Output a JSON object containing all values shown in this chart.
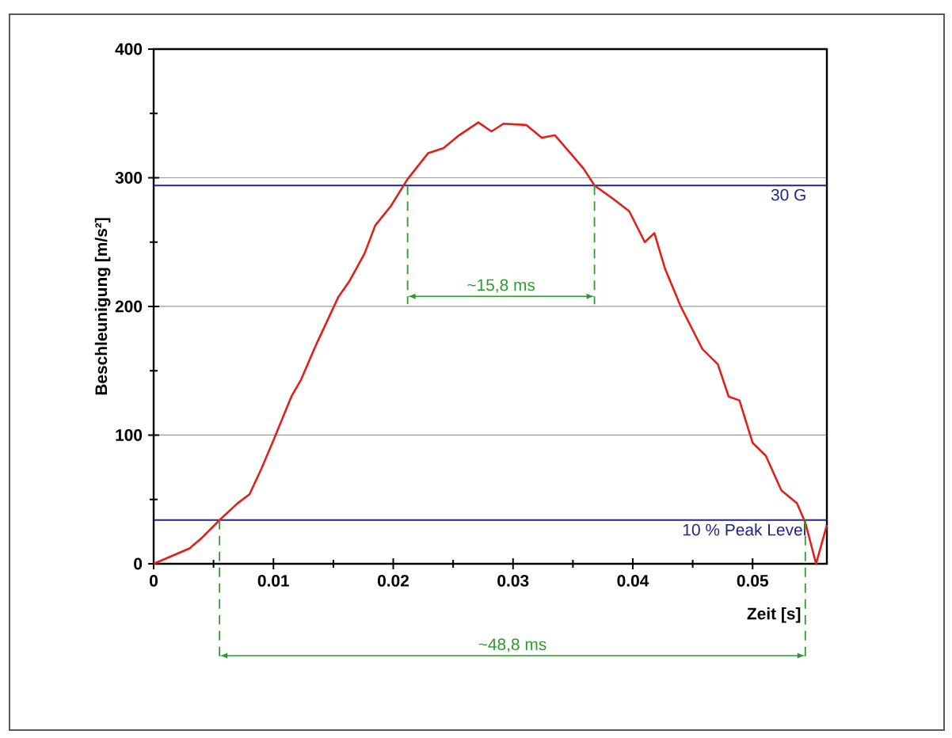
{
  "chart_data": {
    "type": "line",
    "xlabel": "Zeit [s]",
    "ylabel": "Beschleunigung [m/s²]",
    "xlim": [
      0,
      0.0562
    ],
    "ylim": [
      0,
      400
    ],
    "xticks": [
      0,
      0.01,
      0.02,
      0.03,
      0.04,
      0.05
    ],
    "yticks": [
      0,
      100,
      200,
      300,
      400
    ],
    "grid": "y",
    "marker": "none",
    "line_style": "solid",
    "series": [
      {
        "color": "#e0201b",
        "x": [
          0,
          0.001,
          0.003,
          0.004,
          0.0055,
          0.007,
          0.008,
          0.009,
          0.01,
          0.0115,
          0.0123,
          0.0136,
          0.0154,
          0.0163,
          0.0176,
          0.0185,
          0.0198,
          0.0212,
          0.0229,
          0.0242,
          0.0255,
          0.0271,
          0.0282,
          0.0292,
          0.0311,
          0.0324,
          0.0335,
          0.0348,
          0.0359,
          0.0368,
          0.0383,
          0.0397,
          0.041,
          0.0418,
          0.0427,
          0.044,
          0.0458,
          0.0471,
          0.048,
          0.0489,
          0.05,
          0.0511,
          0.0524,
          0.0537,
          0.0544,
          0.0553,
          0.0562
        ],
        "values": [
          0,
          4,
          12,
          20,
          34,
          47,
          54,
          74,
          96,
          130,
          143,
          171,
          207,
          219,
          241,
          263,
          278,
          299,
          319,
          323,
          333,
          343,
          336,
          342,
          341,
          331,
          333,
          319,
          307,
          294,
          284,
          274,
          250,
          257,
          229,
          200,
          167,
          155,
          130,
          127,
          94,
          84,
          57,
          47,
          32,
          0,
          30
        ]
      }
    ],
    "ref_lines": [
      {
        "axis": "y",
        "value": 294,
        "label": "30 G",
        "color": "#23238a"
      },
      {
        "axis": "y",
        "value": 34,
        "label": "10 % Peak Level",
        "color": "#23238a"
      },
      {
        "axis": "x",
        "value": 0.0212,
        "color": "#2e9a2e",
        "line_style": "dashed"
      },
      {
        "axis": "x",
        "value": 0.0368,
        "color": "#2e9a2e",
        "line_style": "dashed"
      },
      {
        "axis": "x",
        "value": 0.0055,
        "color": "#2e9a2e",
        "line_style": "dashed"
      },
      {
        "axis": "x",
        "value": 0.0544,
        "color": "#2e9a2e",
        "line_style": "dashed"
      }
    ],
    "annotations": [
      "~15,8 ms",
      "~48,8 ms"
    ]
  }
}
